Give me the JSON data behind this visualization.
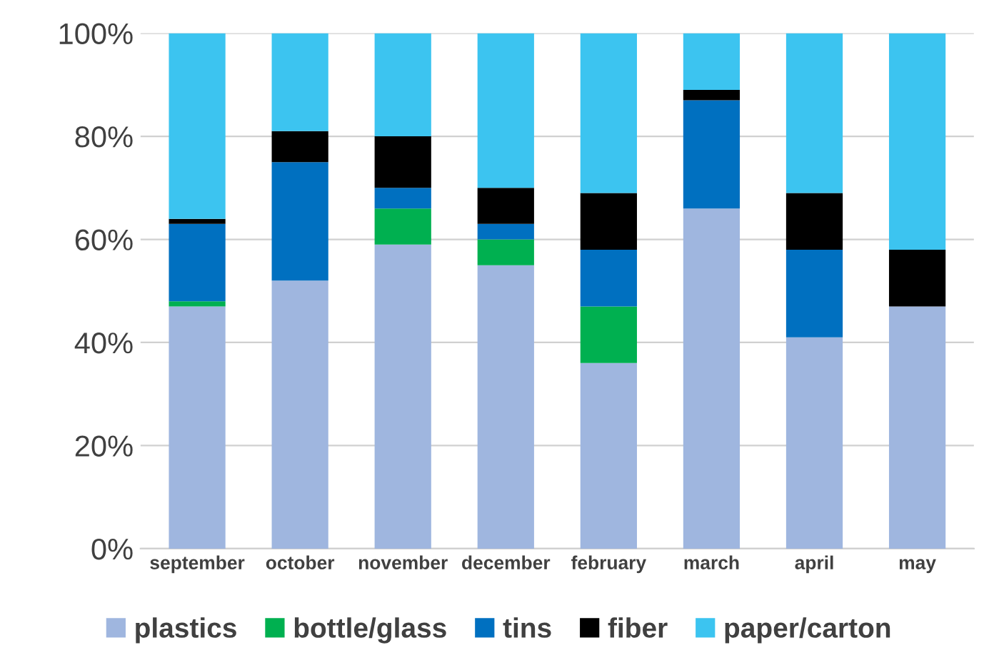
{
  "chart_data": {
    "type": "bar",
    "stacked": true,
    "categories": [
      "september",
      "october",
      "november",
      "december",
      "february",
      "march",
      "april",
      "may"
    ],
    "series": [
      {
        "name": "plastics",
        "color": "#9fb6df",
        "values": [
          47,
          52,
          59,
          55,
          36,
          66,
          41,
          47
        ]
      },
      {
        "name": "bottle/glass",
        "color": "#00b050",
        "values": [
          1,
          0,
          7,
          5,
          11,
          0,
          0,
          0
        ]
      },
      {
        "name": "tins",
        "color": "#0070c0",
        "values": [
          15,
          23,
          4,
          3,
          11,
          21,
          17,
          0
        ]
      },
      {
        "name": "fiber",
        "color": "#000000",
        "values": [
          1,
          6,
          10,
          7,
          11,
          2,
          11,
          11
        ]
      },
      {
        "name": "paper/carton",
        "color": "#3cc4f0",
        "values": [
          36,
          19,
          20,
          30,
          31,
          11,
          31,
          42
        ]
      }
    ],
    "ylim": [
      0,
      100
    ],
    "yticks": [
      {
        "value": 0,
        "label": "0%"
      },
      {
        "value": 20,
        "label": "20%"
      },
      {
        "value": 40,
        "label": "40%"
      },
      {
        "value": 60,
        "label": "60%"
      },
      {
        "value": 80,
        "label": "80%"
      },
      {
        "value": 100,
        "label": "100%"
      }
    ],
    "grid": "y",
    "legend": "bottom"
  }
}
